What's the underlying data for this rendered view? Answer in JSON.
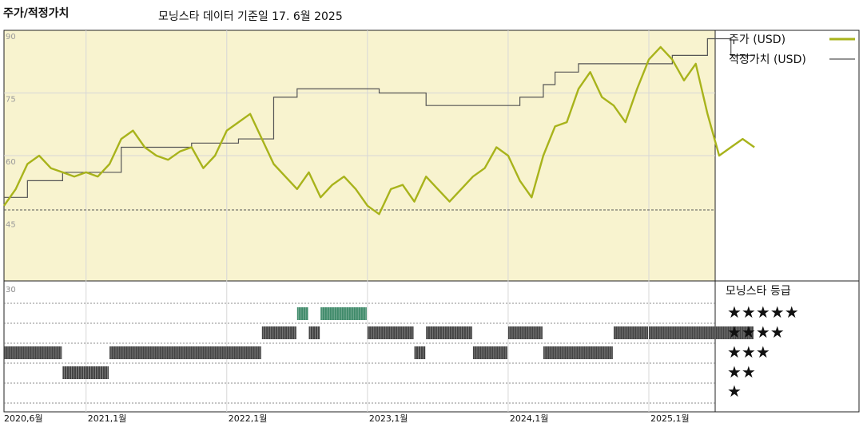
{
  "header": {
    "title": "주가/적정가치",
    "subtitle": "모닝스타 데이터 기준일 17. 6월 2025"
  },
  "colors": {
    "price": "#a8b31b",
    "fair_value": "#555555",
    "panel_bg": "#f8f3cf",
    "rating_dark": "#444444",
    "rating_green": "#3f8a6a"
  },
  "chart_data": [
    {
      "type": "line",
      "ylim": [
        30,
        90
      ],
      "yticks": [
        "90",
        "75",
        "60",
        "45",
        "30"
      ],
      "xticks": [
        "2020,6월",
        "2021,1월",
        "2022,1월",
        "2023,1월",
        "2024,1월",
        "2025,1월"
      ],
      "xlim": [
        "2020-06",
        "2025-06"
      ],
      "series": [
        {
          "name": "주가 (USD)",
          "points": [
            [
              "2020-06",
              48
            ],
            [
              "2020-07",
              52
            ],
            [
              "2020-08",
              58
            ],
            [
              "2020-09",
              60
            ],
            [
              "2020-10",
              57
            ],
            [
              "2020-11",
              56
            ],
            [
              "2020-12",
              55
            ],
            [
              "2021-01",
              56
            ],
            [
              "2021-02",
              55
            ],
            [
              "2021-03",
              58
            ],
            [
              "2021-04",
              64
            ],
            [
              "2021-05",
              66
            ],
            [
              "2021-06",
              62
            ],
            [
              "2021-07",
              60
            ],
            [
              "2021-08",
              59
            ],
            [
              "2021-09",
              61
            ],
            [
              "2021-10",
              62
            ],
            [
              "2021-11",
              57
            ],
            [
              "2021-12",
              60
            ],
            [
              "2022-01",
              66
            ],
            [
              "2022-02",
              68
            ],
            [
              "2022-03",
              70
            ],
            [
              "2022-04",
              64
            ],
            [
              "2022-05",
              58
            ],
            [
              "2022-06",
              55
            ],
            [
              "2022-07",
              52
            ],
            [
              "2022-08",
              56
            ],
            [
              "2022-09",
              50
            ],
            [
              "2022-10",
              53
            ],
            [
              "2022-11",
              55
            ],
            [
              "2022-12",
              52
            ],
            [
              "2023-01",
              48
            ],
            [
              "2023-02",
              46
            ],
            [
              "2023-03",
              52
            ],
            [
              "2023-04",
              53
            ],
            [
              "2023-05",
              49
            ],
            [
              "2023-06",
              55
            ],
            [
              "2023-07",
              52
            ],
            [
              "2023-08",
              49
            ],
            [
              "2023-09",
              52
            ],
            [
              "2023-10",
              55
            ],
            [
              "2023-11",
              57
            ],
            [
              "2023-12",
              62
            ],
            [
              "2024-01",
              60
            ],
            [
              "2024-02",
              54
            ],
            [
              "2024-03",
              50
            ],
            [
              "2024-04",
              60
            ],
            [
              "2024-05",
              67
            ],
            [
              "2024-06",
              68
            ],
            [
              "2024-07",
              76
            ],
            [
              "2024-08",
              80
            ],
            [
              "2024-09",
              74
            ],
            [
              "2024-10",
              72
            ],
            [
              "2024-11",
              68
            ],
            [
              "2024-12",
              76
            ],
            [
              "2025-01",
              83
            ],
            [
              "2025-02",
              86
            ],
            [
              "2025-03",
              83
            ],
            [
              "2025-04",
              78
            ],
            [
              "2025-05",
              82
            ],
            [
              "2025-06",
              70
            ],
            [
              "2025-07",
              60
            ],
            [
              "2025-08",
              62
            ],
            [
              "2025-09",
              64
            ],
            [
              "2025-10",
              62
            ]
          ]
        },
        {
          "name": "적정가치 (USD)",
          "points": [
            [
              "2020-06",
              50
            ],
            [
              "2020-07",
              50
            ],
            [
              "2020-08",
              54
            ],
            [
              "2020-10",
              54
            ],
            [
              "2020-11",
              56
            ],
            [
              "2021-03",
              56
            ],
            [
              "2021-04",
              62
            ],
            [
              "2021-09",
              62
            ],
            [
              "2021-10",
              63
            ],
            [
              "2022-01",
              63
            ],
            [
              "2022-02",
              64
            ],
            [
              "2022-04",
              64
            ],
            [
              "2022-05",
              74
            ],
            [
              "2022-06",
              74
            ],
            [
              "2022-07",
              76
            ],
            [
              "2023-01",
              76
            ],
            [
              "2023-02",
              75
            ],
            [
              "2023-05",
              75
            ],
            [
              "2023-06",
              72
            ],
            [
              "2024-01",
              72
            ],
            [
              "2024-02",
              74
            ],
            [
              "2024-03",
              74
            ],
            [
              "2024-04",
              77
            ],
            [
              "2024-05",
              80
            ],
            [
              "2024-06",
              80
            ],
            [
              "2024-07",
              82
            ],
            [
              "2025-02",
              82
            ],
            [
              "2025-03",
              84
            ],
            [
              "2025-05",
              84
            ],
            [
              "2025-06",
              88
            ],
            [
              "2025-07",
              88
            ],
            [
              "2025-08",
              84
            ],
            [
              "2025-10",
              84
            ]
          ]
        }
      ],
      "reference_line": 47
    },
    {
      "type": "table",
      "title": "모닝스타 등급",
      "rating_labels": [
        "★★★★★",
        "★★★★",
        "★★★",
        "★★",
        "★"
      ],
      "rating_periods": [
        {
          "start": "2020-06",
          "end": "2020-11",
          "stars": 3
        },
        {
          "start": "2020-11",
          "end": "2021-03",
          "stars": 2
        },
        {
          "start": "2021-03",
          "end": "2022-04",
          "stars": 3
        },
        {
          "start": "2022-04",
          "end": "2022-07",
          "stars": 4
        },
        {
          "start": "2022-07",
          "end": "2022-08",
          "stars": 5
        },
        {
          "start": "2022-08",
          "end": "2022-09",
          "stars": 4
        },
        {
          "start": "2022-09",
          "end": "2023-01",
          "stars": 5
        },
        {
          "start": "2023-01",
          "end": "2023-05",
          "stars": 4
        },
        {
          "start": "2023-05",
          "end": "2023-06",
          "stars": 3
        },
        {
          "start": "2023-06",
          "end": "2023-10",
          "stars": 4
        },
        {
          "start": "2023-10",
          "end": "2024-01",
          "stars": 3
        },
        {
          "start": "2024-01",
          "end": "2024-04",
          "stars": 4
        },
        {
          "start": "2024-04",
          "end": "2024-10",
          "stars": 3
        },
        {
          "start": "2024-10",
          "end": "2025-01",
          "stars": 4
        },
        {
          "start": "2025-01",
          "end": "2025-10",
          "stars": 4
        }
      ]
    }
  ]
}
